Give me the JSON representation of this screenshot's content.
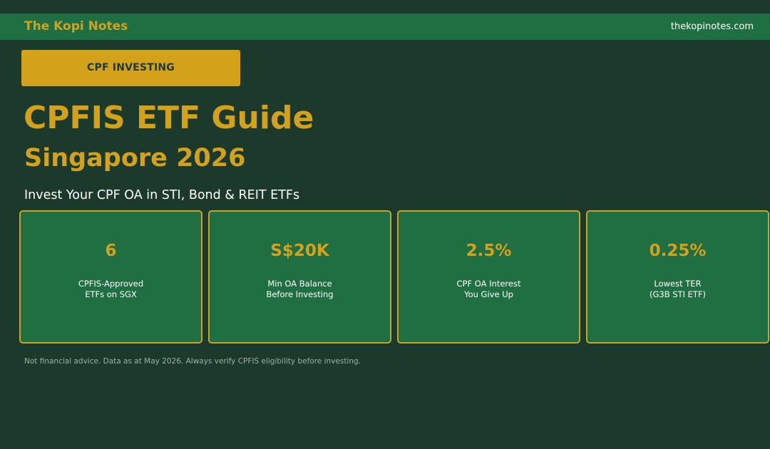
{
  "header": {
    "brand": "The Kopi Notes",
    "site": "thekopinotes.com"
  },
  "badge": "CPF INVESTING",
  "hero": {
    "title": "CPFIS ETF Guide",
    "subtitle": "Singapore 2026",
    "tagline": "Invest Your CPF OA in STI, Bond & REIT ETFs"
  },
  "stats": [
    {
      "value": "6",
      "label_line1": "CPFIS-Approved",
      "label_line2": "ETFs on SGX"
    },
    {
      "value": "S$20K",
      "label_line1": "Min OA Balance",
      "label_line2": "Before Investing"
    },
    {
      "value": "2.5%",
      "label_line1": "CPF OA Interest",
      "label_line2": "You Give Up"
    },
    {
      "value": "0.25%",
      "label_line1": "Lowest TER",
      "label_line2": "(G3B STI ETF)"
    }
  ],
  "disclaimer": "Not financial advice. Data as at May 2026. Always verify CPFIS eligibility before investing.",
  "colors": {
    "background": "#1b3a2b",
    "bar": "#206f43",
    "accent": "#d4a21a",
    "card_border": "#c9a227"
  }
}
